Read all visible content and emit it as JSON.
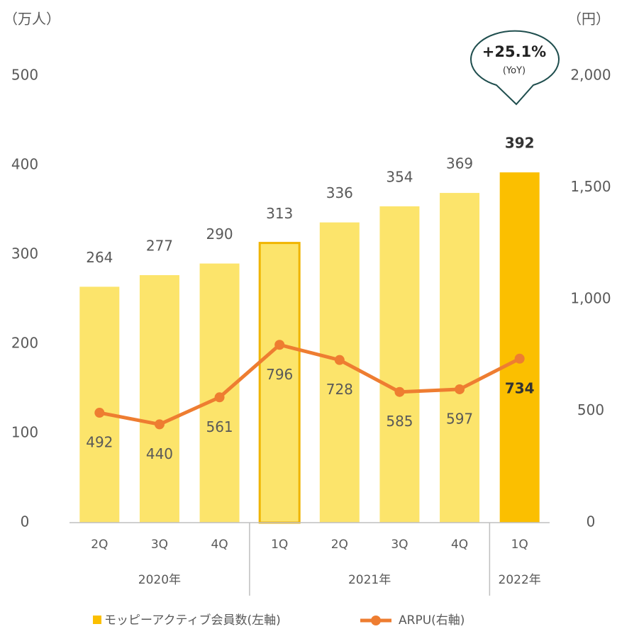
{
  "chart_data": {
    "type": "bar_line",
    "y_unit": "（万人）",
    "y2_unit": "（円）",
    "categories": [
      "2Q",
      "3Q",
      "4Q",
      "1Q",
      "2Q",
      "3Q",
      "4Q",
      "1Q"
    ],
    "groups": [
      {
        "label": "2020年",
        "count": 3
      },
      {
        "label": "2021年",
        "count": 4
      },
      {
        "label": "2022年",
        "count": 1
      }
    ],
    "series": [
      {
        "name": "モッピーアクティブ会員数(左軸)",
        "type": "bar",
        "color": "#fce46b",
        "point_colors": [
          "#fce46b",
          "#fce46b",
          "#fce46b",
          "#fce46b",
          "#fce46b",
          "#fce46b",
          "#fce46b",
          "#fbbf00"
        ],
        "point_strokes": [
          null,
          null,
          null,
          "#f0b400",
          null,
          null,
          null,
          null
        ],
        "values": [
          264,
          277,
          290,
          313,
          336,
          354,
          369,
          392
        ]
      },
      {
        "name": "ARPU(右軸)",
        "type": "line",
        "axis": "y2",
        "color": "#ee7d31",
        "values": [
          492,
          440,
          561,
          796,
          728,
          585,
          597,
          734
        ]
      }
    ],
    "ylim": [
      0,
      500
    ],
    "yticks": [
      0,
      100,
      200,
      300,
      400,
      500
    ],
    "y2lim": [
      0,
      2000
    ],
    "y2ticks": [
      0,
      500,
      {
        "value": 1000,
        "label": "1,000"
      },
      {
        "value": 1500,
        "label": "1,500"
      },
      {
        "value": 2000,
        "label": "2,000"
      }
    ],
    "annotation": {
      "text": "+25.1%",
      "subtext": "(YoY)"
    }
  }
}
